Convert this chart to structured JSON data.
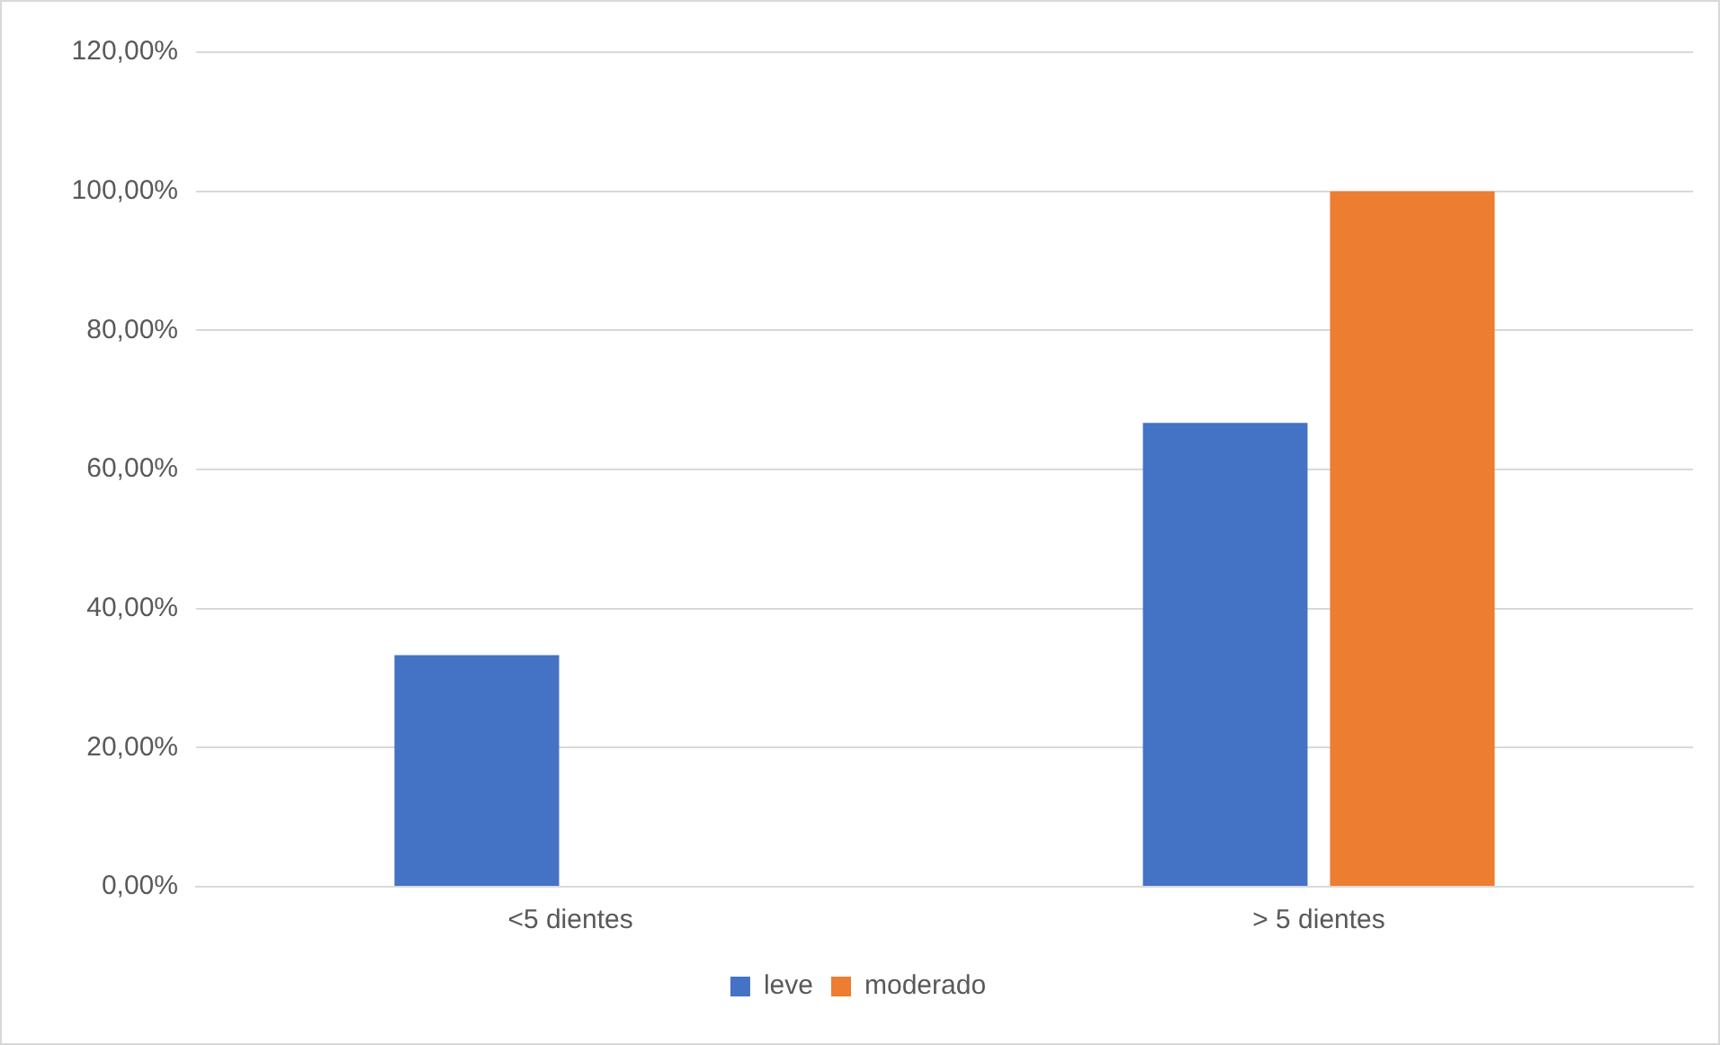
{
  "chart_data": {
    "type": "bar",
    "categories": [
      "<5 dientes",
      "> 5 dientes"
    ],
    "series": [
      {
        "name": "leve",
        "color": "#4472c4",
        "values": [
          33.3,
          66.7
        ]
      },
      {
        "name": "moderado",
        "color": "#ed7d31",
        "values": [
          0,
          100
        ]
      }
    ],
    "ylim": [
      0,
      120
    ],
    "yticks": [
      {
        "value": 0,
        "label": "0,00%"
      },
      {
        "value": 20,
        "label": "20,00%"
      },
      {
        "value": 40,
        "label": "40,00%"
      },
      {
        "value": 60,
        "label": "60,00%"
      },
      {
        "value": 80,
        "label": "80,00%"
      },
      {
        "value": 100,
        "label": "100,00%"
      },
      {
        "value": 120,
        "label": "120,00%"
      }
    ],
    "grid": "y",
    "legend": "bottom"
  }
}
